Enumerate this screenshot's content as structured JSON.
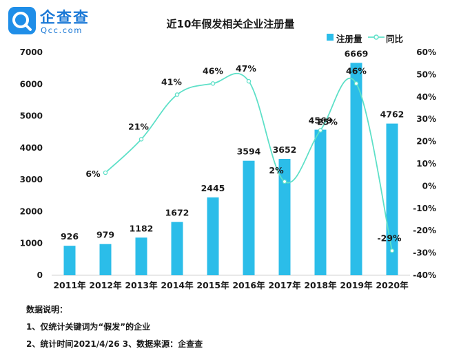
{
  "logo": {
    "name": "企查查",
    "url": "Qcc.com"
  },
  "chart_data": {
    "type": "bar",
    "title": "近10年假发相关企业注册量",
    "categories": [
      "2011年",
      "2012年",
      "2013年",
      "2014年",
      "2015年",
      "2016年",
      "2017年",
      "2018年",
      "2019年",
      "2020年"
    ],
    "series": [
      {
        "name": "注册量",
        "type": "bar",
        "axis": "left",
        "color": "#2bbde9",
        "values": [
          926,
          979,
          1182,
          1672,
          2445,
          3594,
          3652,
          4569,
          6669,
          4762
        ]
      },
      {
        "name": "同比",
        "type": "line",
        "axis": "right",
        "color": "#5ee0c8",
        "values": [
          null,
          6,
          21,
          41,
          46,
          47,
          2,
          25,
          46,
          -29
        ],
        "labels": [
          "",
          "6%",
          "21%",
          "41%",
          "46%",
          "47%",
          "2%",
          "25%",
          "46%",
          "-29%"
        ]
      }
    ],
    "y_left": {
      "min": 0,
      "max": 7000,
      "ticks": [
        0,
        1000,
        2000,
        3000,
        4000,
        5000,
        6000,
        7000
      ],
      "tick_labels": [
        "0",
        "1000",
        "2000",
        "3000",
        "4000",
        "5000",
        "6000",
        "7000"
      ]
    },
    "y_right": {
      "min": -40,
      "max": 60,
      "ticks": [
        -40,
        -30,
        -20,
        -10,
        0,
        10,
        20,
        30,
        40,
        50,
        60
      ],
      "tick_labels": [
        "-40%",
        "-30%",
        "-20%",
        "-10%",
        "0%",
        "10%",
        "20%",
        "30%",
        "40%",
        "50%",
        "60%"
      ]
    },
    "legend_position": "top-right",
    "grid": false
  },
  "notes": {
    "heading": "数据说明：",
    "line1": "1、仅统计关键词为“假发”的企业",
    "line2": "2、统计时间2021/4/26   3、数据来源：企查查"
  }
}
